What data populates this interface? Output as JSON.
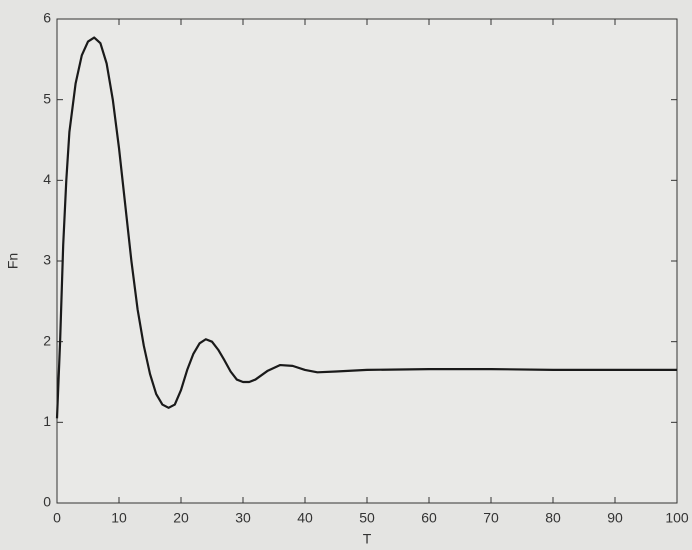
{
  "chart_data": {
    "type": "line",
    "x_label": "T",
    "y_label": "Fn",
    "x": [
      0,
      0.5,
      1,
      1.5,
      2,
      3,
      4,
      5,
      6,
      7,
      8,
      9,
      10,
      11,
      12,
      13,
      14,
      15,
      16,
      17,
      18,
      19,
      20,
      21,
      22,
      23,
      24,
      25,
      26,
      27,
      28,
      29,
      30,
      31,
      32,
      34,
      36,
      38,
      40,
      42,
      45,
      50,
      60,
      70,
      80,
      90,
      100
    ],
    "values": [
      1.05,
      2.0,
      3.2,
      4.0,
      4.6,
      5.2,
      5.55,
      5.72,
      5.77,
      5.7,
      5.45,
      5.0,
      4.4,
      3.7,
      3.0,
      2.4,
      1.95,
      1.6,
      1.35,
      1.22,
      1.18,
      1.22,
      1.4,
      1.65,
      1.85,
      1.98,
      2.03,
      2.0,
      1.9,
      1.77,
      1.63,
      1.53,
      1.5,
      1.5,
      1.53,
      1.64,
      1.71,
      1.7,
      1.65,
      1.62,
      1.63,
      1.65,
      1.66,
      1.66,
      1.65,
      1.65,
      1.65
    ],
    "color": "#1a1a1a",
    "xlim": [
      0,
      100
    ],
    "xticks": [
      0,
      10,
      20,
      30,
      40,
      50,
      60,
      70,
      80,
      90,
      100
    ],
    "ylim": [
      0,
      6
    ],
    "yticks": [
      0,
      1,
      2,
      3,
      4,
      5,
      6
    ],
    "grid": false
  }
}
